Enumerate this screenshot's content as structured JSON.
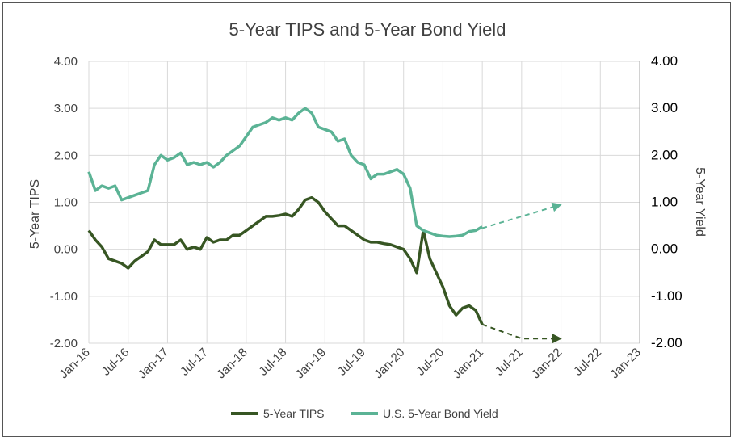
{
  "chart_data": {
    "type": "line",
    "title": "5-Year TIPS and 5-Year Bond Yield",
    "ylabel_left": "5-Year TIPS",
    "ylabel_right": "5-Year Yield",
    "ylim": [
      -2,
      4
    ],
    "y_ticks": [
      4,
      3,
      2,
      1,
      0,
      -1,
      -2
    ],
    "y_tick_labels": [
      "4.00",
      "3.00",
      "2.00",
      "1.00",
      "0.00",
      "-1.00",
      "-2.00"
    ],
    "x_tick_labels": [
      "Jan-16",
      "Jul-16",
      "Jan-17",
      "Jul-17",
      "Jan-18",
      "Jul-18",
      "Jan-19",
      "Jul-19",
      "Jan-20",
      "Jul-20",
      "Jan-21",
      "Jul-21",
      "Jan-22",
      "Jul-22",
      "Jan-23"
    ],
    "grid": true,
    "legend_position": "bottom",
    "series": [
      {
        "name": "5-Year TIPS",
        "color": "#375623",
        "x": [
          "Jan-16",
          "Feb-16",
          "Mar-16",
          "Apr-16",
          "May-16",
          "Jun-16",
          "Jul-16",
          "Aug-16",
          "Sep-16",
          "Oct-16",
          "Nov-16",
          "Dec-16",
          "Jan-17",
          "Feb-17",
          "Mar-17",
          "Apr-17",
          "May-17",
          "Jun-17",
          "Jul-17",
          "Aug-17",
          "Sep-17",
          "Oct-17",
          "Nov-17",
          "Dec-17",
          "Jan-18",
          "Feb-18",
          "Mar-18",
          "Apr-18",
          "May-18",
          "Jun-18",
          "Jul-18",
          "Aug-18",
          "Sep-18",
          "Oct-18",
          "Nov-18",
          "Dec-18",
          "Jan-19",
          "Feb-19",
          "Mar-19",
          "Apr-19",
          "May-19",
          "Jun-19",
          "Jul-19",
          "Aug-19",
          "Sep-19",
          "Oct-19",
          "Nov-19",
          "Dec-19",
          "Jan-20",
          "Feb-20",
          "Mar-20",
          "Apr-20",
          "May-20",
          "Jun-20",
          "Jul-20",
          "Aug-20",
          "Sep-20",
          "Oct-20",
          "Nov-20",
          "Dec-20",
          "Jan-21"
        ],
        "values": [
          0.4,
          0.2,
          0.05,
          -0.2,
          -0.25,
          -0.3,
          -0.4,
          -0.25,
          -0.15,
          -0.05,
          0.2,
          0.1,
          0.1,
          0.1,
          0.2,
          0.0,
          0.05,
          0.0,
          0.25,
          0.15,
          0.2,
          0.2,
          0.3,
          0.3,
          0.4,
          0.5,
          0.6,
          0.7,
          0.7,
          0.72,
          0.75,
          0.7,
          0.85,
          1.05,
          1.1,
          1.0,
          0.8,
          0.65,
          0.5,
          0.5,
          0.4,
          0.3,
          0.2,
          0.15,
          0.15,
          0.12,
          0.1,
          0.05,
          0.0,
          -0.2,
          -0.5,
          0.4,
          -0.2,
          -0.5,
          -0.8,
          -1.2,
          -1.4,
          -1.25,
          -1.2,
          -1.3,
          -1.6
        ]
      },
      {
        "name": "U.S. 5-Year Bond Yield",
        "color": "#5BB395",
        "x": [
          "Jan-16",
          "Feb-16",
          "Mar-16",
          "Apr-16",
          "May-16",
          "Jun-16",
          "Jul-16",
          "Aug-16",
          "Sep-16",
          "Oct-16",
          "Nov-16",
          "Dec-16",
          "Jan-17",
          "Feb-17",
          "Mar-17",
          "Apr-17",
          "May-17",
          "Jun-17",
          "Jul-17",
          "Aug-17",
          "Sep-17",
          "Oct-17",
          "Nov-17",
          "Dec-17",
          "Jan-18",
          "Feb-18",
          "Mar-18",
          "Apr-18",
          "May-18",
          "Jun-18",
          "Jul-18",
          "Aug-18",
          "Sep-18",
          "Oct-18",
          "Nov-18",
          "Dec-18",
          "Jan-19",
          "Feb-19",
          "Mar-19",
          "Apr-19",
          "May-19",
          "Jun-19",
          "Jul-19",
          "Aug-19",
          "Sep-19",
          "Oct-19",
          "Nov-19",
          "Dec-19",
          "Jan-20",
          "Feb-20",
          "Mar-20",
          "Apr-20",
          "May-20",
          "Jun-20",
          "Jul-20",
          "Aug-20",
          "Sep-20",
          "Oct-20",
          "Nov-20",
          "Dec-20",
          "Jan-21"
        ],
        "values": [
          1.65,
          1.25,
          1.35,
          1.3,
          1.35,
          1.05,
          1.1,
          1.15,
          1.2,
          1.25,
          1.8,
          2.0,
          1.9,
          1.95,
          2.05,
          1.8,
          1.85,
          1.8,
          1.85,
          1.75,
          1.85,
          2.0,
          2.1,
          2.2,
          2.4,
          2.6,
          2.65,
          2.7,
          2.8,
          2.75,
          2.8,
          2.75,
          2.9,
          3.0,
          2.9,
          2.6,
          2.55,
          2.5,
          2.3,
          2.35,
          2.0,
          1.85,
          1.8,
          1.5,
          1.6,
          1.6,
          1.65,
          1.7,
          1.6,
          1.3,
          0.5,
          0.4,
          0.35,
          0.3,
          0.28,
          0.27,
          0.28,
          0.3,
          0.38,
          0.4,
          0.48
        ]
      }
    ],
    "projections": [
      {
        "series": "U.S. 5-Year Bond Yield",
        "color": "#5BB395",
        "x": [
          "Jan-21",
          "Jan-22"
        ],
        "values": [
          0.45,
          0.95
        ]
      },
      {
        "series": "5-Year TIPS",
        "color": "#375623",
        "x": [
          "Jan-21",
          "Jul-21",
          "Jan-22"
        ],
        "values": [
          -1.6,
          -1.9,
          -1.9
        ]
      }
    ]
  }
}
